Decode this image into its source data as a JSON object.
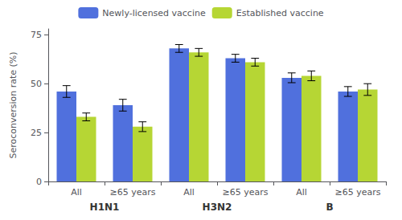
{
  "chart_data": {
    "type": "bar",
    "categories": [
      "All",
      "≥65 years",
      "All",
      "≥65 years",
      "All",
      "≥65 years"
    ],
    "groups": [
      "H1N1",
      "H3N2",
      "B"
    ],
    "series": [
      {
        "name": "Newly-licensed vaccine",
        "values": [
          46,
          39,
          68,
          63,
          53,
          46
        ],
        "errors": [
          3,
          3,
          2,
          2,
          2.5,
          2.5
        ]
      },
      {
        "name": "Established vaccine",
        "values": [
          33,
          28,
          66,
          61,
          54,
          47
        ],
        "errors": [
          2,
          2.5,
          2,
          2,
          2.5,
          3
        ]
      }
    ],
    "ylabel": "Seroconversion rate (%)",
    "ylim": [
      0,
      78
    ],
    "yticks": [
      0,
      25,
      50,
      75
    ],
    "grid": false,
    "legend": "top"
  }
}
